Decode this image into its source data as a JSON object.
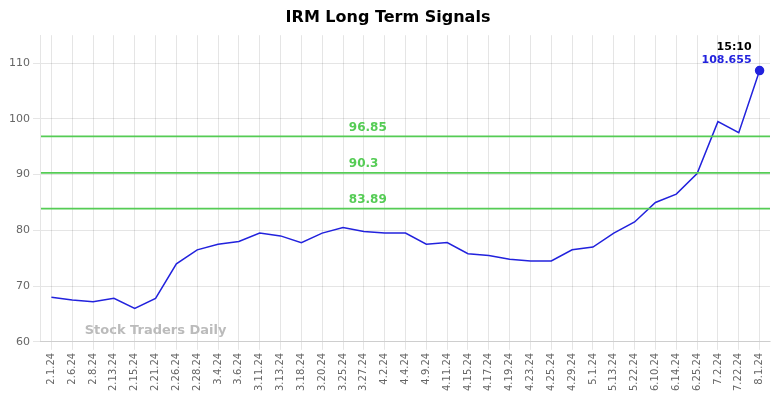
{
  "chart_data": {
    "type": "line",
    "title": "IRM Long Term Signals",
    "categories": [
      "2.1.24",
      "2.6.24",
      "2.8.24",
      "2.13.24",
      "2.15.24",
      "2.21.24",
      "2.26.24",
      "2.28.24",
      "3.4.24",
      "3.6.24",
      "3.11.24",
      "3.13.24",
      "3.18.24",
      "3.20.24",
      "3.25.24",
      "3.27.24",
      "4.2.24",
      "4.4.24",
      "4.9.24",
      "4.11.24",
      "4.15.24",
      "4.17.24",
      "4.19.24",
      "4.23.24",
      "4.25.24",
      "4.29.24",
      "5.1.24",
      "5.13.24",
      "5.22.24",
      "6.10.24",
      "6.14.24",
      "6.25.24",
      "7.2.24",
      "7.22.24",
      "8.1.24"
    ],
    "values": [
      68.0,
      67.5,
      67.2,
      67.8,
      66.0,
      67.8,
      74.0,
      76.5,
      77.5,
      78.0,
      79.5,
      79.0,
      77.8,
      79.5,
      80.5,
      79.8,
      79.5,
      79.5,
      77.5,
      77.8,
      75.8,
      75.5,
      74.8,
      74.5,
      74.5,
      76.5,
      77.0,
      79.5,
      81.5,
      85.0,
      86.5,
      90.2,
      99.5,
      97.5,
      108.655
    ],
    "color": "#2222dd",
    "annotations": [
      {
        "type": "hline",
        "y": 83.89,
        "label": "83.89",
        "color": "#55cc55"
      },
      {
        "type": "hline",
        "y": 90.3,
        "label": "90.3",
        "color": "#55cc55"
      },
      {
        "type": "hline",
        "y": 96.85,
        "label": "96.85",
        "color": "#55cc55"
      },
      {
        "type": "last_point",
        "label": "15:10",
        "color": "#000000"
      },
      {
        "type": "last_point",
        "label": "108.655",
        "color": "#2222dd"
      },
      {
        "type": "watermark",
        "label": "Stock Traders Daily",
        "color": "#bbbbbb"
      }
    ],
    "ylim": [
      60,
      115
    ],
    "yticks": [
      60,
      70,
      80,
      90,
      100,
      110
    ],
    "grid": true
  }
}
